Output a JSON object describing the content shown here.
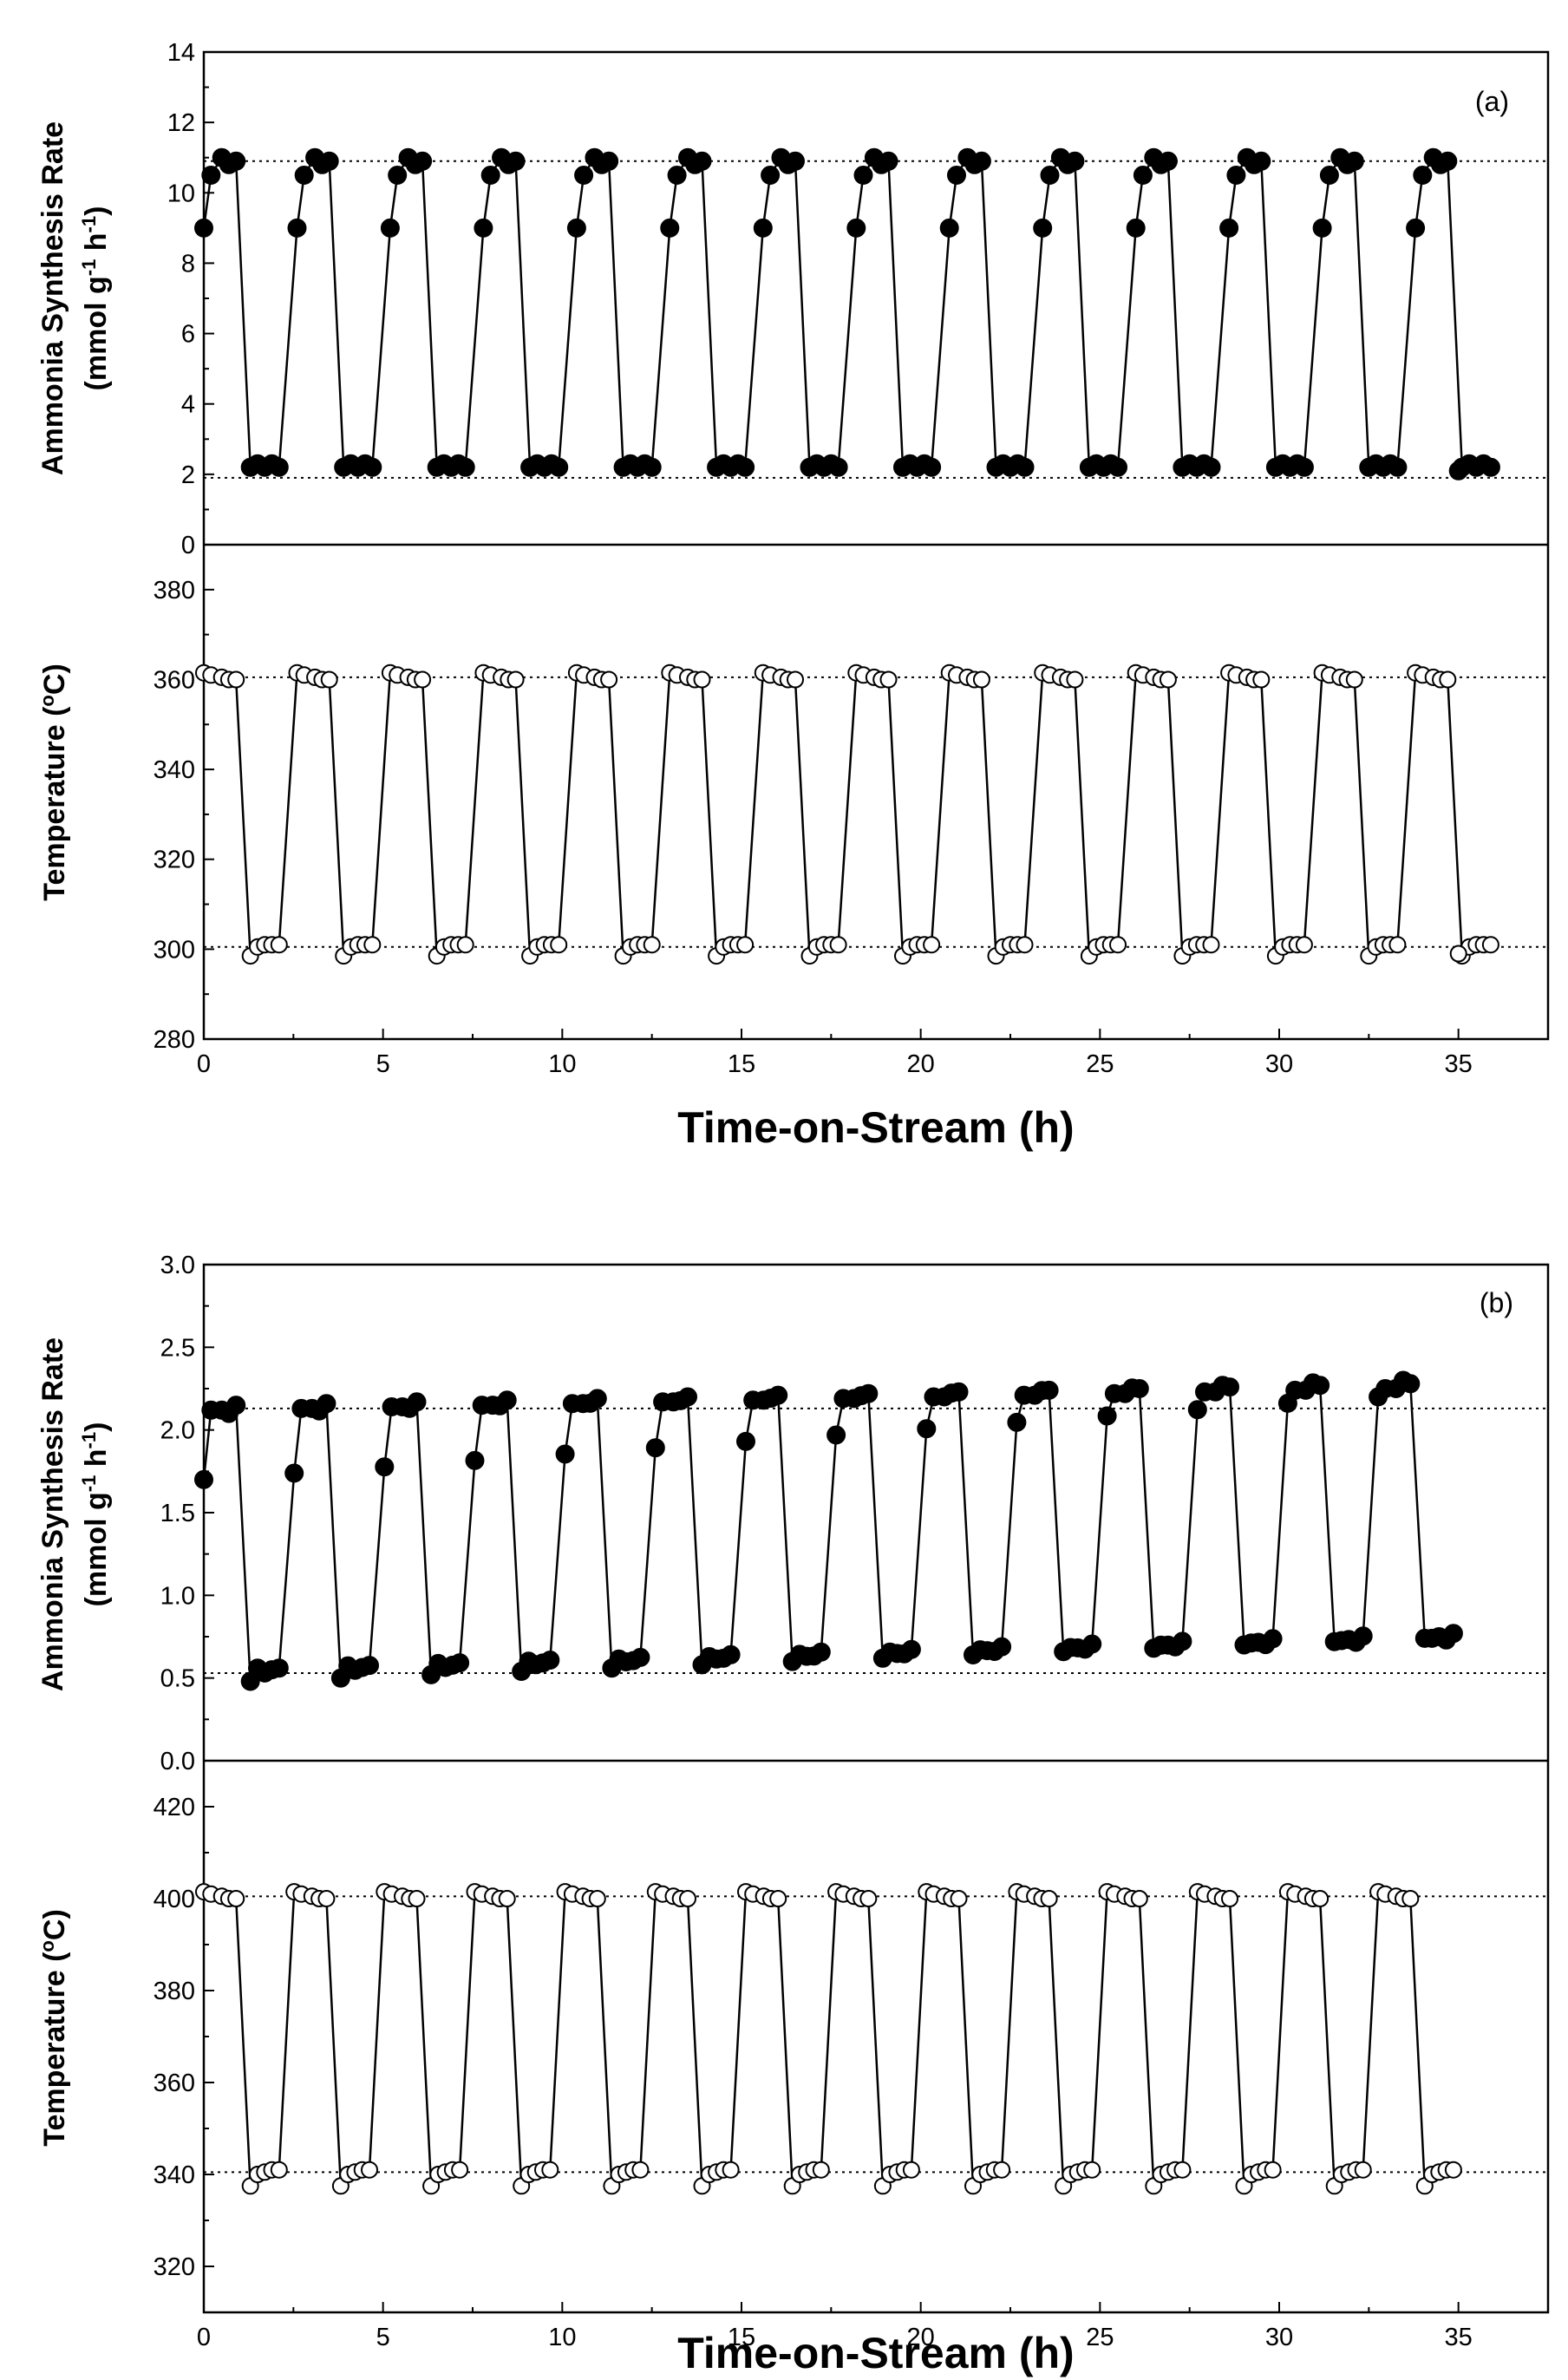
{
  "chart_data": [
    {
      "type": "scatter",
      "panel_label": "(a)",
      "title": "",
      "xlabel": "Time-on-Stream (h)",
      "xlim": [
        0,
        37.5
      ],
      "x_ticks": [
        "0",
        "5",
        "10",
        "15",
        "20",
        "25",
        "30",
        "35"
      ],
      "top": {
        "ylabel": "Ammonia Synthesis Rate",
        "ylabel_units": {
          "pre": "(mmol g",
          "exp1": "-1",
          "mid": " h",
          "exp2": "-1",
          "post": ")"
        },
        "ylim": [
          0,
          14
        ],
        "y_ticks": [
          "0",
          "2",
          "4",
          "6",
          "8",
          "10",
          "12",
          "14"
        ],
        "ref_lines": [
          10.9,
          1.9
        ],
        "marker": "filled-circle",
        "cycle": {
          "n_cycles": 14,
          "period_h": 2.6,
          "high_x_offsets": [
            0,
            0.2,
            0.5,
            0.7,
            0.9
          ],
          "high_y": [
            9.0,
            10.5,
            11.0,
            10.8,
            10.9
          ],
          "low_x_offsets": [
            1.3,
            1.5,
            1.7,
            1.9,
            2.1
          ],
          "low_y": [
            2.2,
            2.3,
            2.2,
            2.3,
            2.2
          ],
          "final_point": {
            "x": 35.0,
            "y": 2.1
          }
        }
      },
      "bottom": {
        "ylabel": "Temperature",
        "ylabel_units": {
          "pre": "(",
          "exp1": "o",
          "mid": "C)"
        },
        "ylim": [
          280,
          390
        ],
        "y_ticks": [
          "280",
          "300",
          "320",
          "340",
          "360",
          "380"
        ],
        "ref_lines": [
          360.5,
          300.5
        ],
        "marker": "open-circle",
        "cycle": {
          "n_cycles": 14,
          "period_h": 2.6,
          "high_x_offsets": [
            0,
            0.2,
            0.5,
            0.7,
            0.9
          ],
          "high_y": [
            361.5,
            361,
            360.5,
            360,
            360
          ],
          "low_x_offsets": [
            1.3,
            1.5,
            1.7,
            1.9,
            2.1
          ],
          "low_y": [
            298.5,
            300.5,
            301,
            301,
            301
          ],
          "final_point": {
            "x": 35.0,
            "y": 299
          }
        }
      }
    },
    {
      "type": "scatter",
      "panel_label": "(b)",
      "title": "",
      "xlabel": "Time-on-Stream (h)",
      "xlim": [
        0,
        37.5
      ],
      "x_ticks": [
        "0",
        "5",
        "10",
        "15",
        "20",
        "25",
        "30",
        "35"
      ],
      "top": {
        "ylabel": "Ammonia Synthesis Rate",
        "ylabel_units": {
          "pre": "(mmol g",
          "exp1": "-1",
          "mid": " h",
          "exp2": "-1",
          "post": ")"
        },
        "ylim": [
          0,
          3.0
        ],
        "y_ticks": [
          "0.0",
          "0.5",
          "1.0",
          "1.5",
          "2.0",
          "2.5",
          "3.0"
        ],
        "ref_lines": [
          2.13,
          0.53
        ],
        "marker": "filled-circle",
        "cycle": {
          "n_cycles": 14,
          "period_h": 2.52,
          "high_x_offsets": [
            0,
            0.2,
            0.5,
            0.7,
            0.9
          ],
          "high_y_start": [
            1.7,
            2.12,
            2.12,
            2.1,
            2.15
          ],
          "high_y_end": [
            2.2,
            2.25,
            2.25,
            2.3,
            2.28
          ],
          "low_x_offsets": [
            1.3,
            1.5,
            1.7,
            1.9,
            2.1
          ],
          "low_y_start": [
            0.48,
            0.56,
            0.53,
            0.55,
            0.56
          ],
          "low_y_end": [
            0.74,
            0.74,
            0.75,
            0.73,
            0.77
          ]
        }
      },
      "bottom": {
        "ylabel": "Temperature",
        "ylabel_units": {
          "pre": "(",
          "exp1": "o",
          "mid": "C)"
        },
        "ylim": [
          310,
          430
        ],
        "y_ticks": [
          "320",
          "340",
          "360",
          "380",
          "400",
          "420"
        ],
        "ref_lines": [
          400.5,
          340.5
        ],
        "marker": "open-circle",
        "cycle": {
          "n_cycles": 14,
          "period_h": 2.52,
          "high_x_offsets": [
            0,
            0.2,
            0.5,
            0.7,
            0.9
          ],
          "high_y": [
            401.5,
            401,
            400.5,
            400,
            400
          ],
          "low_x_offsets": [
            1.3,
            1.5,
            1.7,
            1.9,
            2.1
          ],
          "low_y": [
            337.5,
            340,
            340.5,
            341,
            341
          ]
        }
      }
    }
  ]
}
